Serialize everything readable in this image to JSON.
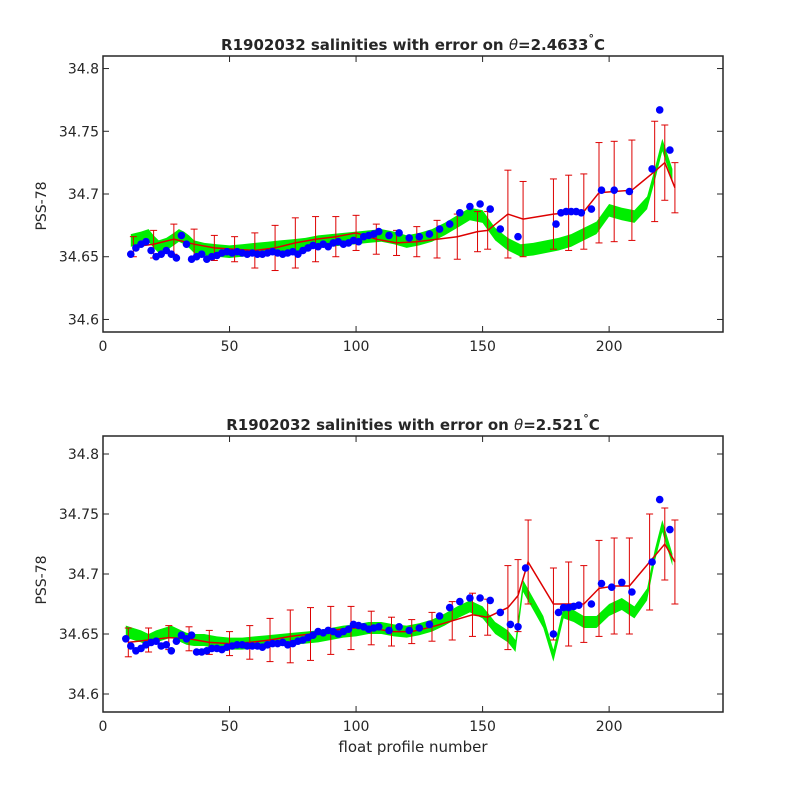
{
  "chart_data": [
    {
      "type": "line",
      "title_prefix": "R1902032 salinities with error on ",
      "title_theta": "θ",
      "title_value": "=2.4633",
      "title_deg": "°",
      "title_unit": "C",
      "ylabel": "PSS-78",
      "xlabel": "",
      "xlim": [
        0,
        245
      ],
      "ylim": [
        34.59,
        34.81
      ],
      "x_ticks": [
        0,
        50,
        100,
        150,
        200
      ],
      "y_ticks": [
        34.6,
        34.65,
        34.7,
        34.75,
        34.8
      ],
      "y_tick_labels": [
        "34.6",
        "34.65",
        "34.7",
        "34.75",
        "34.8"
      ],
      "grid": false,
      "colors": {
        "reference_band": "#00ee00",
        "error_bar": "#dd0000",
        "float_point": "#0000ff"
      },
      "reference_band": {
        "x": [
          11,
          15,
          18,
          20,
          22,
          25,
          28,
          30,
          32,
          34,
          36,
          40,
          45,
          50,
          55,
          60,
          65,
          70,
          75,
          80,
          85,
          90,
          95,
          100,
          105,
          110,
          115,
          120,
          125,
          130,
          135,
          140,
          145,
          150,
          155,
          160,
          165,
          170,
          175,
          180,
          185,
          190,
          195,
          200,
          205,
          210,
          215,
          218,
          221,
          225
        ],
        "center": [
          34.663,
          34.665,
          34.667,
          34.662,
          34.658,
          34.66,
          34.664,
          34.667,
          34.665,
          34.662,
          34.658,
          34.656,
          34.655,
          34.654,
          34.655,
          34.656,
          34.657,
          34.658,
          34.659,
          34.66,
          34.662,
          34.663,
          34.664,
          34.665,
          34.666,
          34.667,
          34.665,
          34.662,
          34.664,
          34.667,
          34.672,
          34.678,
          34.684,
          34.682,
          34.668,
          34.66,
          34.655,
          34.656,
          34.658,
          34.66,
          34.663,
          34.668,
          34.673,
          34.687,
          34.684,
          34.682,
          34.693,
          34.715,
          34.739,
          34.715
        ],
        "half_width": 0.005
      },
      "error_bars": {
        "x": [
          12,
          20,
          28,
          36,
          44,
          52,
          60,
          68,
          76,
          84,
          92,
          100,
          108,
          116,
          124,
          132,
          140,
          148,
          152,
          160,
          166,
          178,
          184,
          190,
          196,
          202,
          209,
          218,
          222,
          226
        ],
        "y": [
          34.658,
          34.66,
          34.664,
          34.66,
          34.657,
          34.656,
          34.655,
          34.657,
          34.661,
          34.664,
          34.666,
          34.669,
          34.664,
          34.661,
          34.662,
          34.664,
          34.666,
          34.67,
          34.671,
          34.684,
          34.68,
          34.684,
          34.685,
          34.686,
          34.701,
          34.702,
          34.703,
          34.718,
          34.725,
          34.705
        ],
        "err": [
          0.008,
          0.011,
          0.012,
          0.012,
          0.01,
          0.01,
          0.014,
          0.018,
          0.02,
          0.018,
          0.016,
          0.014,
          0.012,
          0.01,
          0.012,
          0.015,
          0.018,
          0.016,
          0.015,
          0.035,
          0.03,
          0.028,
          0.03,
          0.03,
          0.04,
          0.04,
          0.04,
          0.04,
          0.03,
          0.02
        ]
      },
      "float_points": {
        "x": [
          11,
          13,
          15,
          17,
          19,
          21,
          23,
          25,
          27,
          29,
          31,
          33,
          35,
          37,
          39,
          41,
          43,
          45,
          47,
          49,
          51,
          53,
          55,
          57,
          59,
          61,
          63,
          65,
          67,
          69,
          71,
          73,
          75,
          77,
          79,
          81,
          83,
          85,
          87,
          89,
          91,
          93,
          95,
          97,
          99,
          101,
          103,
          105,
          107,
          109,
          113,
          117,
          121,
          125,
          129,
          133,
          137,
          141,
          145,
          149,
          153,
          157,
          164,
          179,
          181,
          183,
          185,
          187,
          189,
          193,
          197,
          202,
          208,
          217,
          220,
          224
        ],
        "y": [
          34.652,
          34.657,
          34.66,
          34.662,
          34.655,
          34.65,
          34.652,
          34.655,
          34.652,
          34.649,
          34.667,
          34.66,
          34.648,
          34.65,
          34.652,
          34.648,
          34.65,
          34.651,
          34.653,
          34.654,
          34.653,
          34.654,
          34.653,
          34.652,
          34.653,
          34.652,
          34.652,
          34.653,
          34.654,
          34.653,
          34.652,
          34.653,
          34.654,
          34.652,
          34.655,
          34.657,
          34.659,
          34.658,
          34.66,
          34.658,
          34.661,
          34.662,
          34.66,
          34.661,
          34.663,
          34.662,
          34.666,
          34.667,
          34.668,
          34.67,
          34.667,
          34.669,
          34.665,
          34.666,
          34.668,
          34.672,
          34.676,
          34.685,
          34.69,
          34.692,
          34.688,
          34.672,
          34.666,
          34.676,
          34.685,
          34.686,
          34.686,
          34.686,
          34.685,
          34.688,
          34.703,
          34.703,
          34.702,
          34.72,
          34.767,
          34.735
        ]
      }
    },
    {
      "type": "line",
      "title_prefix": "R1902032 salinities with error on ",
      "title_theta": "θ",
      "title_value": "=2.521",
      "title_deg": "°",
      "title_unit": "C",
      "ylabel": "PSS-78",
      "xlabel": "float profile number",
      "xlim": [
        0,
        245
      ],
      "ylim": [
        34.585,
        34.815
      ],
      "x_ticks": [
        0,
        50,
        100,
        150,
        200
      ],
      "y_ticks": [
        34.6,
        34.65,
        34.7,
        34.75,
        34.8
      ],
      "y_tick_labels": [
        "34.6",
        "34.65",
        "34.7",
        "34.75",
        "34.8"
      ],
      "grid": false,
      "colors": {
        "reference_band": "#00ee00",
        "error_bar": "#dd0000",
        "float_point": "#0000ff"
      },
      "reference_band": {
        "x": [
          9,
          12,
          15,
          18,
          21,
          24,
          27,
          30,
          33,
          36,
          40,
          45,
          50,
          55,
          60,
          65,
          70,
          75,
          80,
          85,
          90,
          95,
          100,
          105,
          110,
          115,
          120,
          125,
          130,
          135,
          140,
          145,
          150,
          155,
          160,
          163,
          166,
          170,
          174,
          178,
          182,
          186,
          190,
          195,
          200,
          205,
          210,
          215,
          218,
          221,
          225
        ],
        "center": [
          34.652,
          34.65,
          34.648,
          34.645,
          34.648,
          34.65,
          34.652,
          34.649,
          34.646,
          34.645,
          34.645,
          34.643,
          34.642,
          34.642,
          34.643,
          34.644,
          34.645,
          34.646,
          34.647,
          34.648,
          34.65,
          34.652,
          34.653,
          34.655,
          34.655,
          34.653,
          34.652,
          34.654,
          34.657,
          34.662,
          34.668,
          34.673,
          34.668,
          34.655,
          34.648,
          34.64,
          34.69,
          34.675,
          34.66,
          34.632,
          34.668,
          34.665,
          34.66,
          34.66,
          34.67,
          34.675,
          34.668,
          34.683,
          34.715,
          34.74,
          34.712
        ],
        "half_width": 0.005
      },
      "error_bars": {
        "x": [
          10,
          18,
          26,
          34,
          42,
          50,
          58,
          66,
          74,
          82,
          90,
          98,
          106,
          114,
          122,
          130,
          138,
          146,
          152,
          160,
          164,
          168,
          178,
          184,
          190,
          196,
          202,
          208,
          216,
          222,
          226
        ],
        "y": [
          34.643,
          34.645,
          34.647,
          34.646,
          34.643,
          34.642,
          34.643,
          34.645,
          34.648,
          34.65,
          34.653,
          34.655,
          34.655,
          34.652,
          34.652,
          34.656,
          34.661,
          34.666,
          34.664,
          34.672,
          34.682,
          34.71,
          34.675,
          34.675,
          34.675,
          34.688,
          34.69,
          34.69,
          34.71,
          34.725,
          34.71
        ],
        "err": [
          0.012,
          0.01,
          0.01,
          0.01,
          0.01,
          0.01,
          0.014,
          0.018,
          0.022,
          0.022,
          0.02,
          0.018,
          0.014,
          0.012,
          0.01,
          0.012,
          0.016,
          0.018,
          0.015,
          0.035,
          0.03,
          0.035,
          0.03,
          0.035,
          0.032,
          0.04,
          0.04,
          0.04,
          0.04,
          0.03,
          0.035
        ]
      },
      "float_points": {
        "x": [
          9,
          11,
          13,
          15,
          17,
          19,
          21,
          23,
          25,
          27,
          29,
          31,
          33,
          35,
          37,
          39,
          41,
          43,
          45,
          47,
          49,
          51,
          53,
          55,
          57,
          59,
          61,
          63,
          65,
          67,
          69,
          71,
          73,
          75,
          77,
          79,
          81,
          83,
          85,
          87,
          89,
          91,
          93,
          95,
          97,
          99,
          101,
          103,
          105,
          107,
          109,
          113,
          117,
          121,
          125,
          129,
          133,
          137,
          141,
          145,
          149,
          153,
          157,
          161,
          164,
          167,
          178,
          180,
          182,
          184,
          186,
          188,
          193,
          197,
          201,
          205,
          209,
          217,
          220,
          224
        ],
        "y": [
          34.646,
          34.64,
          34.636,
          34.638,
          34.641,
          34.643,
          34.644,
          34.64,
          34.641,
          34.636,
          34.644,
          34.649,
          34.646,
          34.649,
          34.635,
          34.635,
          34.636,
          34.638,
          34.638,
          34.637,
          34.639,
          34.64,
          34.641,
          34.641,
          34.64,
          34.64,
          34.64,
          34.639,
          34.641,
          34.642,
          34.642,
          34.643,
          34.641,
          34.642,
          34.644,
          34.645,
          34.647,
          34.649,
          34.652,
          34.651,
          34.653,
          34.652,
          34.65,
          34.652,
          34.654,
          34.658,
          34.657,
          34.656,
          34.654,
          34.655,
          34.656,
          34.653,
          34.656,
          34.653,
          34.655,
          34.658,
          34.665,
          34.672,
          34.677,
          34.68,
          34.68,
          34.678,
          34.668,
          34.658,
          34.656,
          34.705,
          34.65,
          34.668,
          34.672,
          34.672,
          34.673,
          34.674,
          34.675,
          34.692,
          34.689,
          34.693,
          34.685,
          34.71,
          34.762,
          34.737
        ]
      }
    }
  ]
}
